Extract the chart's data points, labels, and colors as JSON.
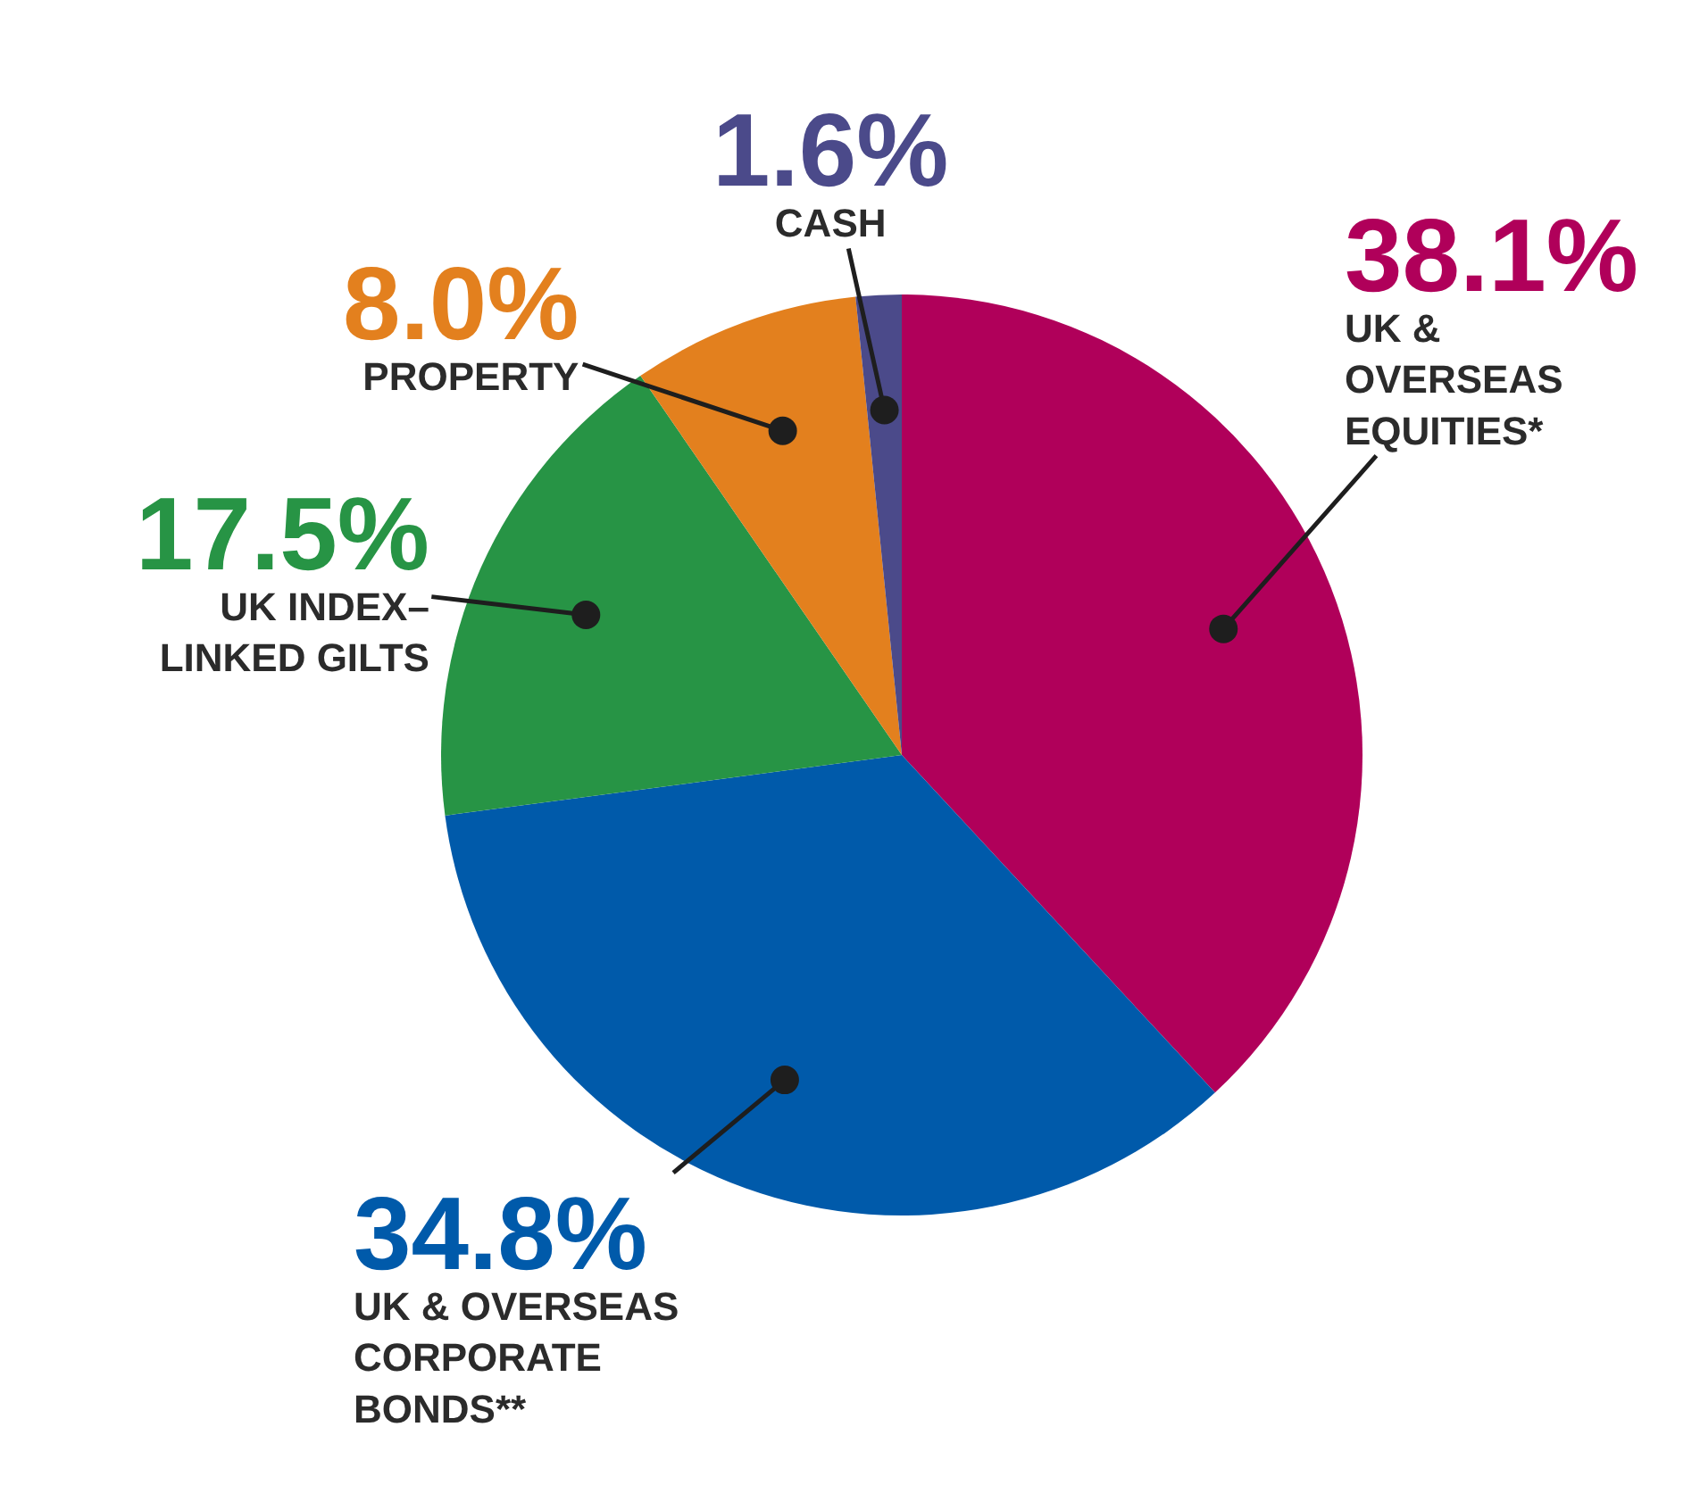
{
  "chart_data": {
    "type": "pie",
    "categories": [
      "UK &\nOVERSEAS\nEQUITIES*",
      "UK & OVERSEAS\nCORPORATE\nBONDS**",
      "UK INDEX–\nLINKED GILTS",
      "PROPERTY",
      "CASH"
    ],
    "values": [
      38.1,
      34.8,
      17.5,
      8.0,
      1.6
    ],
    "value_labels": [
      "38.1%",
      "34.8%",
      "17.5%",
      "8.0%",
      "1.6%"
    ],
    "colors": [
      "#b0005a",
      "#005aaa",
      "#279445",
      "#e3801e",
      "#4b4a8a"
    ],
    "legend": false
  }
}
